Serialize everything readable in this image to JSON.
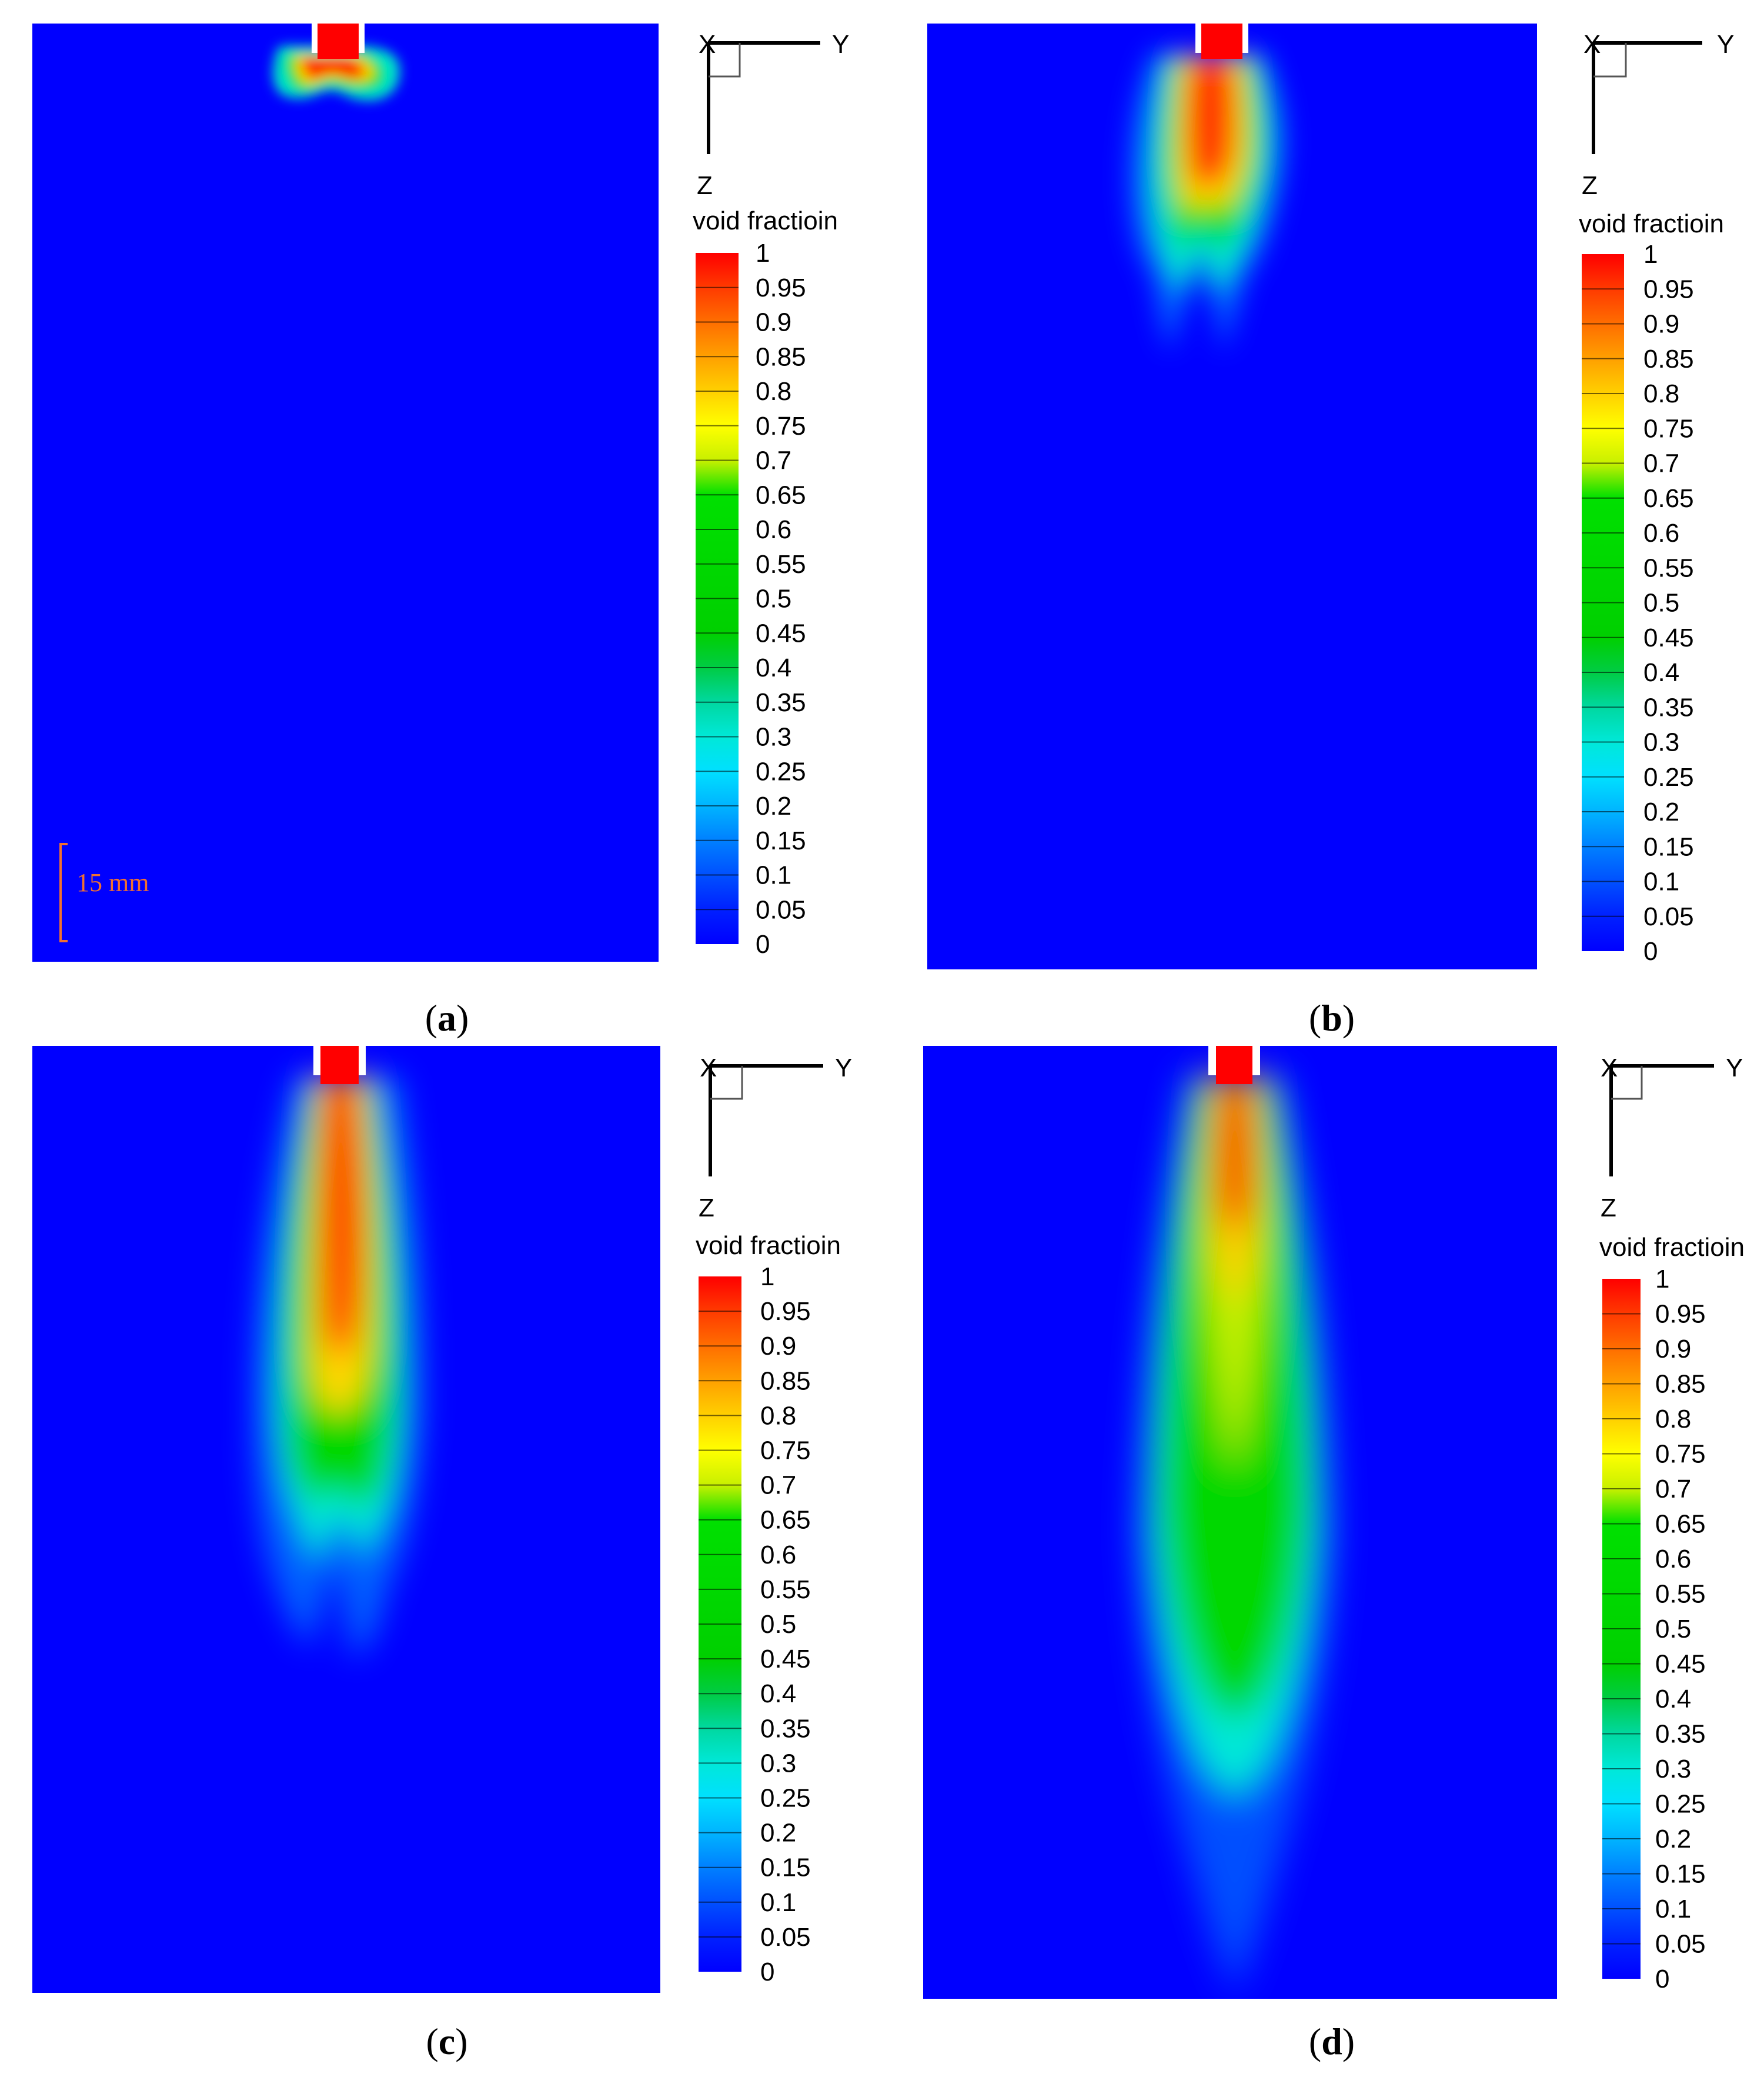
{
  "colorbar": {
    "title": "void fractioin",
    "ticks": [
      "1",
      "0.95",
      "0.9",
      "0.85",
      "0.8",
      "0.75",
      "0.7",
      "0.65",
      "0.6",
      "0.55",
      "0.5",
      "0.45",
      "0.4",
      "0.35",
      "0.3",
      "0.25",
      "0.2",
      "0.15",
      "0.1",
      "0.05",
      "0"
    ],
    "stops": [
      "#ff0000",
      "#ff3a00",
      "#ff6e00",
      "#ffa000",
      "#ffd000",
      "#ffff00",
      "#c8f000",
      "#00e000",
      "#00dc00",
      "#00d800",
      "#00d400",
      "#00d000",
      "#00cc44",
      "#00d8a0",
      "#00e8d8",
      "#00e0ff",
      "#00b4ff",
      "#0080ff",
      "#0050ff",
      "#0020ff",
      "#0000ff"
    ]
  },
  "axes": {
    "x_label": "X",
    "y_label": "Y",
    "z_label": "Z"
  },
  "scale_bar": {
    "label": "15 mm"
  },
  "panels": [
    {
      "id": "a",
      "caption_open": "(",
      "caption_letter": "a",
      "caption_close": ")",
      "plume_stage": 1
    },
    {
      "id": "b",
      "caption_open": "(",
      "caption_letter": "b",
      "caption_close": ")",
      "plume_stage": 2
    },
    {
      "id": "c",
      "caption_open": "(",
      "caption_letter": "c",
      "caption_close": ")",
      "plume_stage": 3
    },
    {
      "id": "d",
      "caption_open": "(",
      "caption_letter": "d",
      "caption_close": ")",
      "plume_stage": 4
    }
  ],
  "colors": {
    "background_liquid": "#0000ff",
    "gas": "#ff0000",
    "nozzle": "#ffffff",
    "scale_bar": "#f07030"
  }
}
